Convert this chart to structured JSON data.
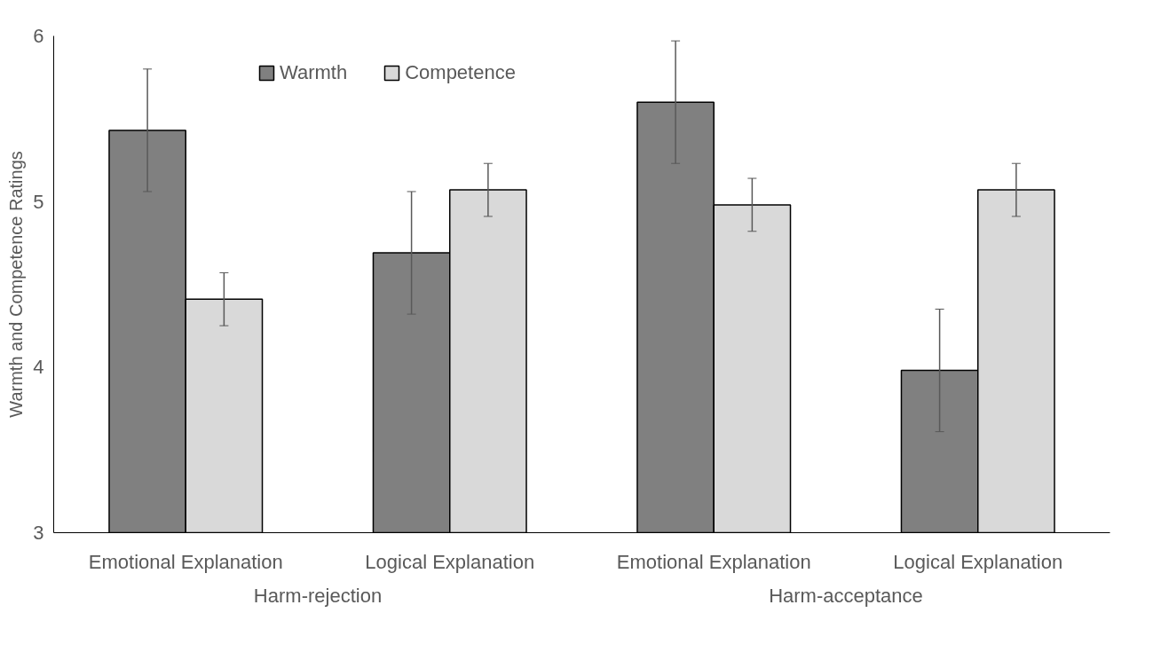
{
  "chart_data": {
    "type": "bar",
    "ylabel": "Warmth and Competence Ratings",
    "categories": [
      "Emotional Explanation",
      "Logical Explanation",
      "Emotional Explanation",
      "Logical Explanation"
    ],
    "series": [
      {
        "name": "Warmth",
        "color": "#808080",
        "values": [
          5.43,
          4.69,
          5.6,
          3.98
        ],
        "errors": [
          0.37,
          0.37,
          0.37,
          0.37
        ]
      },
      {
        "name": "Competence",
        "color": "#d9d9d9",
        "values": [
          4.41,
          5.07,
          4.98,
          5.07
        ],
        "errors": [
          0.16,
          0.16,
          0.16,
          0.16
        ]
      }
    ],
    "annotations": [
      "Harm-rejection",
      "Harm-acceptance"
    ],
    "ylim": [
      3,
      6
    ],
    "yticks": [
      3,
      4,
      5,
      6
    ],
    "grid": false,
    "legend": "top"
  }
}
